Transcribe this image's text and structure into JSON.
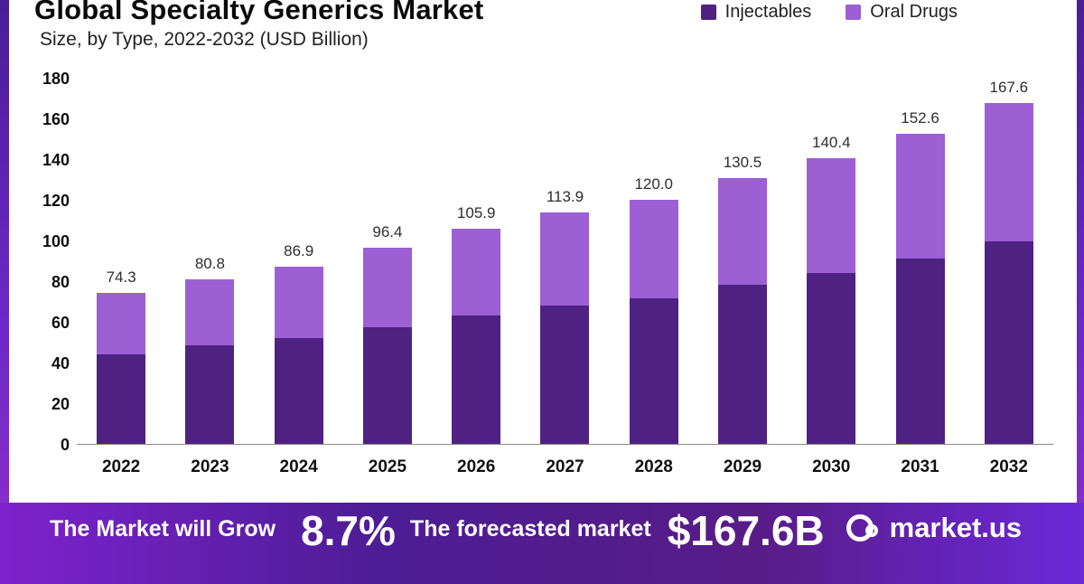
{
  "header": {
    "title": "Global Specialty Generics Market",
    "subtitle": "Size, by Type, 2022-2032 (USD Billion)"
  },
  "legend": {
    "items": [
      {
        "label": "Injectables",
        "color": "#4f2183"
      },
      {
        "label": "Oral Drugs",
        "color": "#9c5fd4"
      }
    ]
  },
  "chart_data": {
    "type": "bar",
    "stacked": true,
    "title": "Global Specialty Generics Market Size, by Type, 2022-2032 (USD Billion)",
    "categories": [
      "2022",
      "2023",
      "2024",
      "2025",
      "2026",
      "2027",
      "2028",
      "2029",
      "2030",
      "2031",
      "2032"
    ],
    "series": [
      {
        "name": "Injectables",
        "color": "#4f2183",
        "values": [
          44.2,
          48.3,
          51.9,
          57.4,
          63.1,
          67.8,
          71.5,
          78.1,
          83.8,
          90.9,
          99.5
        ]
      },
      {
        "name": "Oral Drugs",
        "color": "#9c5fd4",
        "values": [
          30.1,
          32.5,
          35.0,
          39.0,
          42.8,
          46.1,
          48.5,
          52.4,
          56.6,
          61.7,
          68.1
        ]
      }
    ],
    "totals": [
      "74.3",
      "80.8",
      "86.9",
      "96.4",
      "105.9",
      "113.9",
      "120.0",
      "130.5",
      "140.4",
      "152.6",
      "167.6"
    ],
    "ylabel": "",
    "xlabel": "",
    "ylim": [
      0,
      180
    ],
    "ytick_step": 20,
    "grid": false,
    "legend_position": "top-right"
  },
  "banner": {
    "grow_text": "The Market will Grow",
    "cagr_value": "8.7%",
    "forecast_text": "The forecasted market",
    "market_size": "$167.6B",
    "brand": "market.us"
  }
}
